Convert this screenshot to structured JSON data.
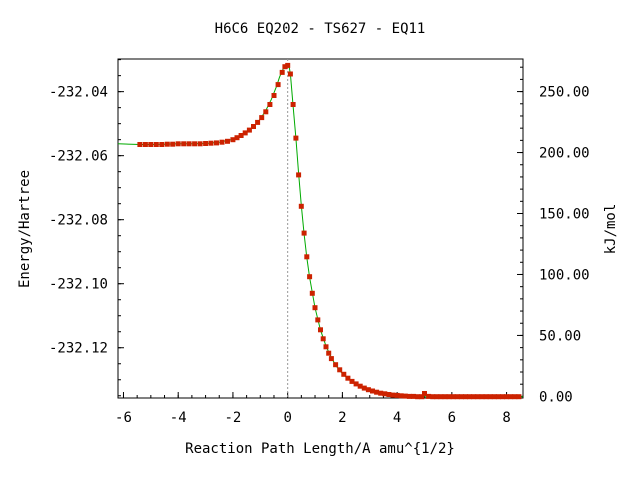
{
  "chart_data": {
    "type": "line",
    "title": "H6C6   EQ202 - TS627 - EQ11",
    "xlabel": "Reaction Path Length/A amu^{1/2}",
    "ylabel_left": "Energy/Hartree",
    "ylabel_right": "kJ/mol",
    "xlim": [
      -6.2,
      8.6
    ],
    "ylim": [
      -232.1357,
      -232.0298
    ],
    "x_ticks": [
      -6,
      -4,
      -2,
      0,
      2,
      4,
      6,
      8
    ],
    "x_tick_labels": [
      "-6",
      "-4",
      "-2",
      "0",
      "2",
      "4",
      "6",
      "8"
    ],
    "y_ticks": [
      -232.04,
      -232.06,
      -232.08,
      -232.1,
      -232.12
    ],
    "y_tick_labels": [
      "-232.04",
      "-232.06",
      "-232.08",
      "-232.10",
      "-232.12"
    ],
    "y2_ticks_kjmol": [
      250,
      200,
      150,
      100,
      50,
      0
    ],
    "y2_tick_labels": [
      "250.00",
      "200.00",
      "150.00",
      "100.00",
      "50.00",
      "0.00"
    ],
    "y2_zero_energy": -232.1352,
    "ts_marker_x": 0.0,
    "colors": {
      "curve": "#00aa00",
      "points": "#cc2200",
      "ts_line": "#999999"
    },
    "series": [
      {
        "kind": "curve",
        "x": [
          -6.2,
          -5.4,
          -5.0,
          -4.5,
          -4.0,
          -3.5,
          -3.0,
          -2.5,
          -2.0,
          -1.8,
          -1.6,
          -1.4,
          -1.2,
          -1.0,
          -0.8,
          -0.6,
          -0.4,
          -0.3,
          -0.2,
          -0.1,
          0.0,
          0.05,
          0.1,
          0.2,
          0.3,
          0.4,
          0.5,
          0.6,
          0.7,
          0.8,
          1.0,
          1.2,
          1.4,
          1.6,
          1.8,
          2.0,
          2.2,
          2.5,
          2.8,
          3.0,
          3.3,
          3.6,
          4.0,
          4.4,
          4.8,
          5.2,
          5.6,
          6.0,
          7.0,
          8.6
        ],
        "y": [
          -232.0563,
          -232.0565,
          -232.0565,
          -232.0564,
          -232.0563,
          -232.0563,
          -232.0562,
          -232.0558,
          -232.0549,
          -232.0542,
          -232.0532,
          -232.052,
          -232.0505,
          -232.0485,
          -232.0459,
          -232.0425,
          -232.0382,
          -232.0355,
          -232.0335,
          -232.032,
          -232.0315,
          -232.032,
          -232.0345,
          -232.0445,
          -232.0545,
          -232.0655,
          -232.0755,
          -232.0845,
          -232.0918,
          -232.098,
          -232.1075,
          -232.1145,
          -232.1195,
          -232.1232,
          -232.126,
          -232.1281,
          -232.1297,
          -232.1315,
          -232.1328,
          -232.1334,
          -232.1341,
          -232.1346,
          -232.135,
          -232.1352,
          -232.1353,
          -232.1353,
          -232.1353,
          -232.1353,
          -232.1353,
          -232.1353
        ]
      },
      {
        "kind": "points",
        "x": [
          -5.4,
          -5.2,
          -5.0,
          -4.8,
          -4.6,
          -4.4,
          -4.2,
          -4.0,
          -3.8,
          -3.6,
          -3.4,
          -3.2,
          -3.0,
          -2.8,
          -2.6,
          -2.4,
          -2.2,
          -2.0,
          -1.85,
          -1.7,
          -1.55,
          -1.4,
          -1.25,
          -1.1,
          -0.95,
          -0.8,
          -0.65,
          -0.5,
          -0.35,
          -0.2,
          -0.1,
          0.0,
          0.1,
          0.2,
          0.3,
          0.4,
          0.5,
          0.6,
          0.7,
          0.8,
          0.9,
          1.0,
          1.1,
          1.2,
          1.3,
          1.4,
          1.5,
          1.6,
          1.75,
          1.9,
          2.05,
          2.2,
          2.35,
          2.5,
          2.65,
          2.8,
          2.95,
          3.1,
          3.25,
          3.4,
          3.55,
          3.7,
          3.85,
          4.0,
          4.15,
          4.3,
          4.45,
          4.6,
          4.75,
          4.9,
          5.0,
          5.15,
          5.3,
          5.45,
          5.6,
          5.75,
          5.9,
          6.05,
          6.2,
          6.35,
          6.5,
          6.65,
          6.8,
          6.95,
          7.1,
          7.25,
          7.4,
          7.55,
          7.7,
          7.85,
          8.0,
          8.15,
          8.3,
          8.45
        ],
        "y": [
          -232.0565,
          -232.0565,
          -232.0565,
          -232.0565,
          -232.0565,
          -232.0564,
          -232.0564,
          -232.0563,
          -232.0563,
          -232.0563,
          -232.0563,
          -232.0563,
          -232.0562,
          -232.0561,
          -232.056,
          -232.0558,
          -232.0555,
          -232.055,
          -232.0544,
          -232.0537,
          -232.0529,
          -232.052,
          -232.0509,
          -232.0496,
          -232.0481,
          -232.0463,
          -232.044,
          -232.0412,
          -232.0378,
          -232.034,
          -232.0322,
          -232.0318,
          -232.0345,
          -232.044,
          -232.0545,
          -232.066,
          -232.0758,
          -232.0842,
          -232.0916,
          -232.0978,
          -232.103,
          -232.1075,
          -232.1113,
          -232.1144,
          -232.1172,
          -232.1197,
          -232.1217,
          -232.1234,
          -232.1253,
          -232.1269,
          -232.1283,
          -232.1295,
          -232.1305,
          -232.1313,
          -232.132,
          -232.1326,
          -232.1331,
          -232.1335,
          -232.1339,
          -232.1342,
          -232.1344,
          -232.1346,
          -232.1348,
          -232.1349,
          -232.135,
          -232.1351,
          -232.1352,
          -232.1352,
          -232.1353,
          -232.1353,
          -232.1343,
          -232.1352,
          -232.1353,
          -232.1353,
          -232.1353,
          -232.1353,
          -232.1353,
          -232.1353,
          -232.1353,
          -232.1353,
          -232.1353,
          -232.1353,
          -232.1353,
          -232.1353,
          -232.1353,
          -232.1353,
          -232.1353,
          -232.1353,
          -232.1353,
          -232.1353,
          -232.1353,
          -232.1353,
          -232.1353,
          -232.1353
        ]
      }
    ]
  }
}
